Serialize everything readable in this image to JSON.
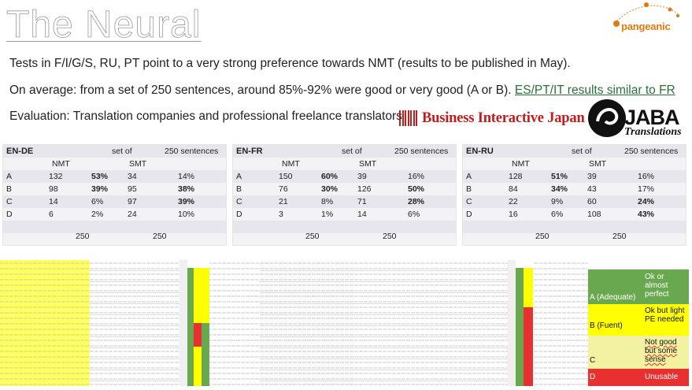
{
  "title": "The Neural",
  "brand": {
    "name": "pangeanic",
    "accent": "#e07a10"
  },
  "lines": {
    "l1": "Tests in F/I/G/S, RU, PT point to a very strong preference towards NMT (results to be published in May).",
    "l2_prefix": "On average: from a set of 250 sentences, around 85%-92% were good or very good (A or B).",
    "l2_link": "ES/PT/IT results similar to FR",
    "l3": "Evaluation: Translation companies and professional freelance translators"
  },
  "partners": {
    "bij": "Business Interactive Japan Inc.",
    "jaba": "JABA",
    "jaba_sub": "Translations"
  },
  "tables": [
    {
      "lang": "EN-DE",
      "set_of": "set of",
      "sentences": "250 sentences",
      "col_nmt": "NMT",
      "col_smt": "SMT",
      "rows": [
        {
          "g": "A",
          "nmt": "132",
          "nmt_pct": "53%",
          "smt": "34",
          "smt_pct": "14%"
        },
        {
          "g": "B",
          "nmt": "98",
          "nmt_pct": "39%",
          "smt": "95",
          "smt_pct": "38%"
        },
        {
          "g": "C",
          "nmt": "14",
          "nmt_pct": "6%",
          "smt": "97",
          "smt_pct": "39%"
        },
        {
          "g": "D",
          "nmt": "6",
          "nmt_pct": "2%",
          "smt": "24",
          "smt_pct": "10%"
        }
      ],
      "total_nmt": "250",
      "total_smt": "250"
    },
    {
      "lang": "EN-FR",
      "set_of": "set of",
      "sentences": "250 sentences",
      "col_nmt": "NMT",
      "col_smt": "SMT",
      "rows": [
        {
          "g": "A",
          "nmt": "150",
          "nmt_pct": "60%",
          "smt": "39",
          "smt_pct": "16%"
        },
        {
          "g": "B",
          "nmt": "76",
          "nmt_pct": "30%",
          "smt": "126",
          "smt_pct": "50%"
        },
        {
          "g": "C",
          "nmt": "21",
          "nmt_pct": "8%",
          "smt": "71",
          "smt_pct": "28%"
        },
        {
          "g": "D",
          "nmt": "3",
          "nmt_pct": "1%",
          "smt": "14",
          "smt_pct": "6%"
        }
      ],
      "total_nmt": "250",
      "total_smt": "250"
    },
    {
      "lang": "EN-RU",
      "set_of": "set of",
      "sentences": "250 sentences",
      "col_nmt": "NMT",
      "col_smt": "SMT",
      "rows": [
        {
          "g": "A",
          "nmt": "128",
          "nmt_pct": "51%",
          "smt": "39",
          "smt_pct": "16%"
        },
        {
          "g": "B",
          "nmt": "84",
          "nmt_pct": "34%",
          "smt": "43",
          "smt_pct": "17%"
        },
        {
          "g": "C",
          "nmt": "22",
          "nmt_pct": "9%",
          "smt": "60",
          "smt_pct": "24%"
        },
        {
          "g": "D",
          "nmt": "16",
          "nmt_pct": "6%",
          "smt": "108",
          "smt_pct": "43%"
        }
      ],
      "total_nmt": "250",
      "total_smt": "250"
    }
  ],
  "legend": [
    {
      "code": "A (Adequate)",
      "desc": "Ok or almost perfect",
      "color": "#6aa84f"
    },
    {
      "code": "B (Fuent)",
      "desc": "Ok but light PE needed",
      "color": "#ffff00"
    },
    {
      "code": "C",
      "desc": "Not good but some sense",
      "color": "#f2f2a0"
    },
    {
      "code": "D",
      "desc": "Unusable",
      "color": "#e83030"
    }
  ]
}
